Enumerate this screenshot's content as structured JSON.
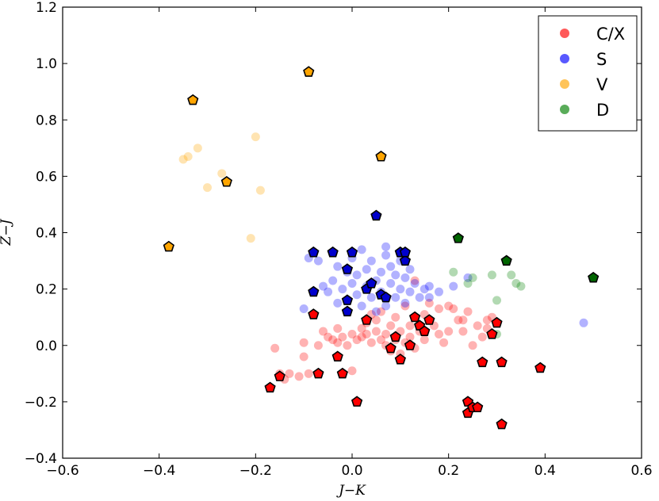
{
  "chart_data": {
    "type": "scatter",
    "title": "",
    "xlabel": "J−K",
    "ylabel": "Z−J",
    "xlim": [
      -0.6,
      0.6
    ],
    "ylim": [
      -0.4,
      1.2
    ],
    "xticks": [
      -0.6,
      -0.4,
      -0.2,
      0.0,
      0.2,
      0.4,
      0.6
    ],
    "yticks": [
      -0.4,
      -0.2,
      0.0,
      0.2,
      0.4,
      0.6,
      0.8,
      1.0,
      1.2
    ],
    "xtick_labels": [
      "−0.6",
      "−0.4",
      "−0.2",
      "0.0",
      "0.2",
      "0.4",
      "0.6"
    ],
    "ytick_labels": [
      "−0.4",
      "−0.2",
      "0.0",
      "0.2",
      "0.4",
      "0.6",
      "0.8",
      "1.0",
      "1.2"
    ],
    "grid": false,
    "legend_position": "top-right",
    "series": [
      {
        "name": "C/X",
        "color": "#ff0000",
        "marker": "circle",
        "alpha": 0.3,
        "points": [
          [
            -0.16,
            -0.01
          ],
          [
            -0.15,
            -0.1
          ],
          [
            -0.14,
            -0.12
          ],
          [
            -0.13,
            -0.1
          ],
          [
            -0.11,
            -0.11
          ],
          [
            -0.1,
            -0.04
          ],
          [
            -0.1,
            0.01
          ],
          [
            -0.09,
            -0.1
          ],
          [
            -0.08,
            0.11
          ],
          [
            -0.07,
            0.0
          ],
          [
            -0.06,
            0.05
          ],
          [
            -0.05,
            0.03
          ],
          [
            -0.04,
            0.02
          ],
          [
            -0.03,
            0.06
          ],
          [
            -0.03,
            0.01
          ],
          [
            -0.02,
            0.03
          ],
          [
            -0.01,
            0.0
          ],
          [
            0.0,
            0.04
          ],
          [
            0.0,
            -0.09
          ],
          [
            0.01,
            0.02
          ],
          [
            0.02,
            0.06
          ],
          [
            0.02,
            0.03
          ],
          [
            0.03,
            0.04
          ],
          [
            0.03,
            0.08
          ],
          [
            0.04,
            0.11
          ],
          [
            0.04,
            0.01
          ],
          [
            0.05,
            0.05
          ],
          [
            0.05,
            0.09
          ],
          [
            0.06,
            0.02
          ],
          [
            0.06,
            0.12
          ],
          [
            0.07,
            0.04
          ],
          [
            0.07,
            0.0
          ],
          [
            0.08,
            0.07
          ],
          [
            0.08,
            -0.02
          ],
          [
            0.09,
            0.02
          ],
          [
            0.09,
            0.1
          ],
          [
            0.1,
            0.05
          ],
          [
            0.1,
            -0.03
          ],
          [
            0.11,
            0.01
          ],
          [
            0.11,
            0.14
          ],
          [
            0.12,
            0.03
          ],
          [
            0.12,
            0.07
          ],
          [
            0.13,
            0.23
          ],
          [
            0.13,
            -0.01
          ],
          [
            0.14,
            0.05
          ],
          [
            0.15,
            0.11
          ],
          [
            0.15,
            0.02
          ],
          [
            0.16,
            0.15
          ],
          [
            0.17,
            0.07
          ],
          [
            0.18,
            0.04
          ],
          [
            0.18,
            0.13
          ],
          [
            0.19,
            0.01
          ],
          [
            0.2,
            0.14
          ],
          [
            0.2,
            0.05
          ],
          [
            0.21,
            0.13
          ],
          [
            0.22,
            0.09
          ],
          [
            0.23,
            0.05
          ],
          [
            0.23,
            0.09
          ],
          [
            0.24,
            0.12
          ],
          [
            0.25,
            0.0
          ],
          [
            0.26,
            0.07
          ],
          [
            0.27,
            0.03
          ],
          [
            0.28,
            0.09
          ],
          [
            0.28,
            0.06
          ],
          [
            0.29,
            0.1
          ]
        ]
      },
      {
        "name": "S",
        "color": "#0000ff",
        "marker": "circle",
        "alpha": 0.3,
        "points": [
          [
            -0.1,
            0.13
          ],
          [
            -0.09,
            0.31
          ],
          [
            -0.07,
            0.3
          ],
          [
            -0.06,
            0.21
          ],
          [
            -0.05,
            0.19
          ],
          [
            -0.04,
            0.23
          ],
          [
            -0.03,
            0.28
          ],
          [
            -0.03,
            0.15
          ],
          [
            -0.02,
            0.2
          ],
          [
            -0.01,
            0.26
          ],
          [
            -0.01,
            0.12
          ],
          [
            0.0,
            0.22
          ],
          [
            0.0,
            0.31
          ],
          [
            0.01,
            0.18
          ],
          [
            0.01,
            0.25
          ],
          [
            0.02,
            0.34
          ],
          [
            0.02,
            0.14
          ],
          [
            0.03,
            0.21
          ],
          [
            0.03,
            0.27
          ],
          [
            0.04,
            0.17
          ],
          [
            0.04,
            0.3
          ],
          [
            0.05,
            0.23
          ],
          [
            0.05,
            0.12
          ],
          [
            0.06,
            0.26
          ],
          [
            0.06,
            0.19
          ],
          [
            0.07,
            0.32
          ],
          [
            0.07,
            0.35
          ],
          [
            0.07,
            0.14
          ],
          [
            0.08,
            0.22
          ],
          [
            0.08,
            0.28
          ],
          [
            0.09,
            0.17
          ],
          [
            0.09,
            0.25
          ],
          [
            0.1,
            0.2
          ],
          [
            0.1,
            0.3
          ],
          [
            0.11,
            0.15
          ],
          [
            0.11,
            0.24
          ],
          [
            0.12,
            0.19
          ],
          [
            0.12,
            0.27
          ],
          [
            0.13,
            0.22
          ],
          [
            0.14,
            0.17
          ],
          [
            0.15,
            0.2
          ],
          [
            0.16,
            0.21
          ],
          [
            0.16,
            0.17
          ],
          [
            0.18,
            0.19
          ],
          [
            0.21,
            0.21
          ],
          [
            0.24,
            0.24
          ],
          [
            0.48,
            0.08
          ]
        ]
      },
      {
        "name": "V",
        "color": "#ffa500",
        "marker": "circle",
        "alpha": 0.3,
        "points": [
          [
            -0.35,
            0.66
          ],
          [
            -0.34,
            0.67
          ],
          [
            -0.32,
            0.7
          ],
          [
            -0.3,
            0.56
          ],
          [
            -0.27,
            0.61
          ],
          [
            -0.21,
            0.38
          ],
          [
            -0.2,
            0.74
          ],
          [
            -0.19,
            0.55
          ]
        ]
      },
      {
        "name": "D",
        "color": "#008000",
        "marker": "circle",
        "alpha": 0.3,
        "points": [
          [
            0.21,
            0.26
          ],
          [
            0.24,
            0.22
          ],
          [
            0.25,
            0.24
          ],
          [
            0.29,
            0.25
          ],
          [
            0.3,
            0.16
          ],
          [
            0.33,
            0.25
          ],
          [
            0.34,
            0.22
          ],
          [
            0.35,
            0.21
          ],
          [
            0.3,
            0.04
          ]
        ]
      }
    ],
    "highlighted_points": [
      {
        "color": "#ff0000",
        "marker": "pentagon",
        "points": [
          [
            -0.17,
            -0.15
          ],
          [
            -0.15,
            -0.11
          ],
          [
            -0.08,
            0.11
          ],
          [
            -0.07,
            -0.1
          ],
          [
            -0.03,
            -0.04
          ],
          [
            -0.02,
            -0.1
          ],
          [
            0.01,
            -0.2
          ],
          [
            0.03,
            0.09
          ],
          [
            0.08,
            -0.01
          ],
          [
            0.09,
            0.03
          ],
          [
            0.1,
            -0.05
          ],
          [
            0.12,
            0.0
          ],
          [
            0.13,
            0.1
          ],
          [
            0.14,
            0.07
          ],
          [
            0.15,
            0.05
          ],
          [
            0.16,
            0.09
          ],
          [
            0.24,
            -0.2
          ],
          [
            0.24,
            -0.24
          ],
          [
            0.25,
            -0.22
          ],
          [
            0.26,
            -0.22
          ],
          [
            0.27,
            -0.06
          ],
          [
            0.29,
            0.04
          ],
          [
            0.3,
            0.08
          ],
          [
            0.31,
            -0.06
          ],
          [
            0.31,
            -0.28
          ],
          [
            0.39,
            -0.08
          ]
        ]
      },
      {
        "color": "#0000cd",
        "marker": "pentagon",
        "points": [
          [
            -0.08,
            0.33
          ],
          [
            -0.08,
            0.19
          ],
          [
            -0.04,
            0.33
          ],
          [
            -0.01,
            0.27
          ],
          [
            -0.01,
            0.16
          ],
          [
            -0.01,
            0.12
          ],
          [
            0.0,
            0.33
          ],
          [
            0.03,
            0.2
          ],
          [
            0.04,
            0.22
          ],
          [
            0.05,
            0.46
          ],
          [
            0.06,
            0.18
          ],
          [
            0.07,
            0.17
          ],
          [
            0.1,
            0.33
          ],
          [
            0.11,
            0.3
          ],
          [
            0.11,
            0.33
          ]
        ]
      },
      {
        "color": "#ffa500",
        "marker": "pentagon",
        "points": [
          [
            -0.38,
            0.35
          ],
          [
            -0.33,
            0.87
          ],
          [
            -0.26,
            0.58
          ],
          [
            -0.09,
            0.97
          ],
          [
            0.06,
            0.67
          ]
        ]
      },
      {
        "color": "#006400",
        "marker": "pentagon",
        "points": [
          [
            0.22,
            0.38
          ],
          [
            0.32,
            0.3
          ],
          [
            0.5,
            0.24
          ]
        ]
      }
    ]
  }
}
